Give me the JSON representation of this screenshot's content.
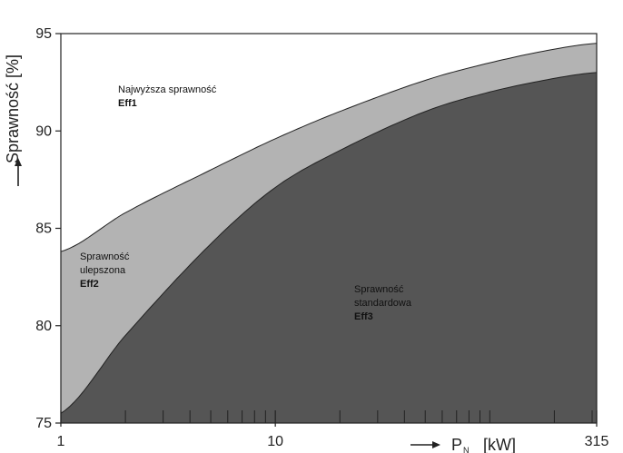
{
  "chart_data": {
    "type": "area",
    "xscale": "log",
    "xlim": [
      1,
      315
    ],
    "ylim": [
      75,
      95
    ],
    "x_tick_labels": [
      {
        "x": 1,
        "label": "1"
      },
      {
        "x": 10,
        "label": "10"
      },
      {
        "x": 315,
        "label": "315"
      }
    ],
    "x_minor_ticks": [
      2,
      3,
      4,
      5,
      6,
      7,
      8,
      9,
      20,
      30,
      40,
      50,
      60,
      70,
      80,
      90,
      100,
      200,
      300
    ],
    "y_ticks": [
      75,
      80,
      85,
      90,
      95
    ],
    "y_tick_labels": [
      "75",
      "80",
      "85",
      "90",
      "95"
    ],
    "ylabel": "Sprawność [%]",
    "xlabel_symbol": "P",
    "xlabel_subscript": "N",
    "xlabel_unit": "[kW]",
    "series": [
      {
        "name": "Eff1/Eff2 boundary",
        "x": [
          1,
          2,
          5,
          10,
          20,
          50,
          100,
          200,
          315
        ],
        "values": [
          83.8,
          85.8,
          88.0,
          89.6,
          91.0,
          92.6,
          93.5,
          94.2,
          94.5
        ]
      },
      {
        "name": "Eff2/Eff3 boundary",
        "x": [
          1,
          2,
          5,
          10,
          20,
          50,
          100,
          200,
          315
        ],
        "values": [
          75.5,
          79.5,
          84.2,
          87.1,
          89.0,
          91.0,
          92.0,
          92.7,
          93.0
        ]
      }
    ],
    "regions": [
      {
        "label": "Najwyższa sprawność",
        "class": "Eff1",
        "color": "#ffffff"
      },
      {
        "label_lines": [
          "Sprawność",
          "ulepszona"
        ],
        "class": "Eff2",
        "color": "#b3b3b3"
      },
      {
        "label_lines": [
          "Sprawność",
          "standardowa"
        ],
        "class": "Eff3",
        "color": "#555555"
      }
    ],
    "grid": false
  }
}
